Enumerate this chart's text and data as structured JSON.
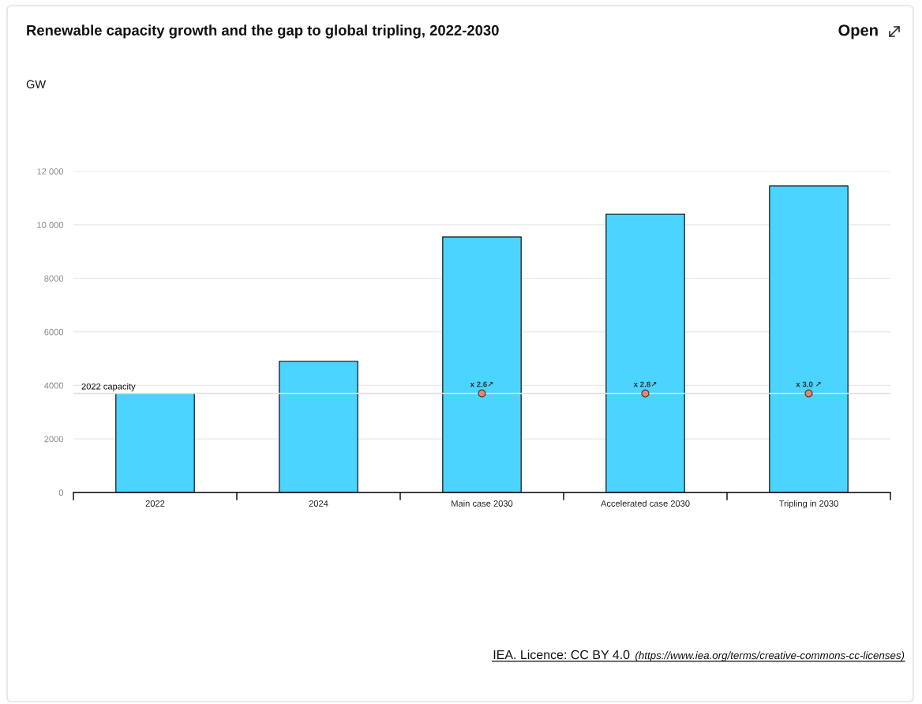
{
  "chart_data": {
    "type": "bar",
    "title": "Renewable capacity growth and the gap to global tripling, 2022-2030",
    "categories": [
      "2022",
      "2024",
      "Main case 2030",
      "Accelerated case 2030",
      "Tripling in 2030"
    ],
    "series": [
      {
        "color": "#4ad4ff",
        "values": [
          3700,
          4900,
          9550,
          10400,
          11450
        ]
      },
      {
        "type": "scatter",
        "x": [
          "Main case 2030",
          "Accelerated case 2030",
          "Tripling in 2030"
        ],
        "color": "#f4845f",
        "marker": "circle",
        "values": [
          3700,
          3700,
          3700
        ]
      }
    ],
    "ylim": [
      0,
      12000
    ],
    "yticks": [
      0,
      2000,
      4000,
      6000,
      8000,
      {
        "value": 10000,
        "label": "10 000"
      },
      {
        "value": 12000,
        "label": "12 000"
      }
    ],
    "grid": "y",
    "ref_lines": [
      {
        "axis": "y",
        "value": 3700,
        "label": "2022 capacity",
        "color": "#e0e0e0"
      }
    ],
    "annotations": [
      {
        "text": "x 2.6↗",
        "x": "Main case 2030",
        "y": 3700
      },
      {
        "text": "x 2.8↗",
        "x": "Accelerated case 2030",
        "y": 3700
      },
      {
        "text": "x 3.0 ↗",
        "x": "Tripling in 2030",
        "y": 3700
      },
      "GW",
      "Open",
      "IEA. Licence: CC BY 4.0",
      "(https://www.iea.org/terms/creative-commons-cc-licenses)"
    ]
  }
}
